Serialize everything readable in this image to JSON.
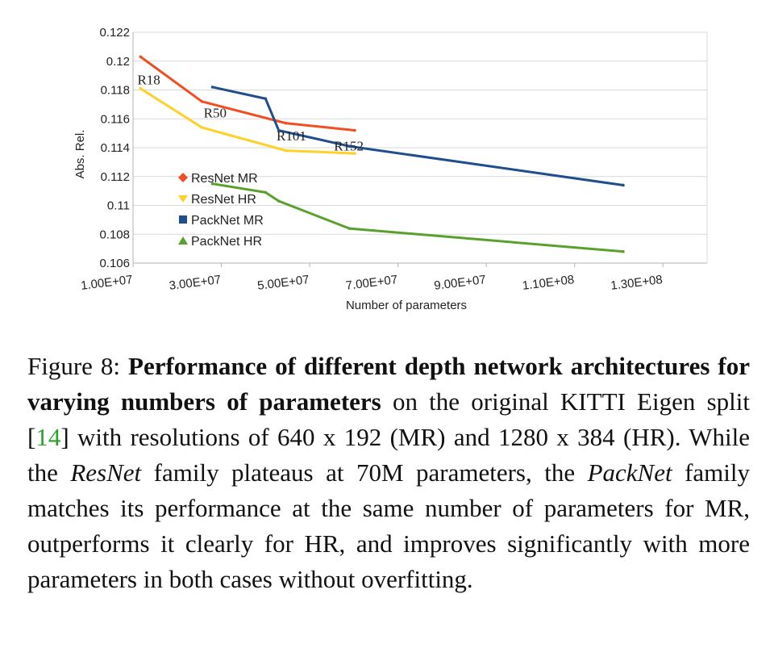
{
  "chart_data": {
    "type": "line",
    "xlabel": "Number of parameters",
    "ylabel": "Abs. Rel.",
    "xlim": [
      10000000,
      140000000
    ],
    "ylim": [
      0.106,
      0.122
    ],
    "x_ticks": [
      10000000,
      30000000,
      50000000,
      70000000,
      90000000,
      110000000,
      130000000
    ],
    "x_tick_labels": [
      "1.00E+07",
      "3.00E+07",
      "5.00E+07",
      "7.00E+07",
      "9.00E+07",
      "1.10E+08",
      "1.30E+08"
    ],
    "y_ticks": [
      0.106,
      0.108,
      0.11,
      0.112,
      0.114,
      0.116,
      0.118,
      0.12,
      0.122
    ],
    "y_tick_labels": [
      "0.106",
      "0.108",
      "0.11",
      "0.112",
      "0.114",
      "0.116",
      "0.118",
      "0.12",
      "0.122"
    ],
    "grid": "horizontal",
    "legend_position": "left",
    "series": [
      {
        "name": "ResNet MR",
        "color": "#f04e23",
        "marker": "diamond",
        "x": [
          11700000,
          25600000,
          44600000,
          60200000
        ],
        "y": [
          0.1203,
          0.1172,
          0.1157,
          0.1152
        ]
      },
      {
        "name": "ResNet HR",
        "color": "#ffd025",
        "marker": "triangle-down",
        "x": [
          11700000,
          25600000,
          44600000,
          60200000
        ],
        "y": [
          0.1181,
          0.1154,
          0.1138,
          0.1136
        ]
      },
      {
        "name": "PackNet MR",
        "color": "#1f4e8c",
        "marker": "square",
        "x": [
          28000000,
          40000000,
          43000000,
          59000000,
          121000000
        ],
        "y": [
          0.1182,
          0.1174,
          0.1152,
          0.1141,
          0.1114
        ]
      },
      {
        "name": "PackNet HR",
        "color": "#5aa02c",
        "marker": "triangle-up",
        "x": [
          28000000,
          40000000,
          43000000,
          59000000,
          121000000
        ],
        "y": [
          0.1115,
          0.1109,
          0.1103,
          0.1084,
          0.1068
        ]
      }
    ],
    "annotations": [
      {
        "text": "R18",
        "x": 11000000,
        "y": 0.1184
      },
      {
        "text": "R50",
        "x": 26000000,
        "y": 0.1161
      },
      {
        "text": "R101",
        "x": 42500000,
        "y": 0.1145
      },
      {
        "text": "R152",
        "x": 55500000,
        "y": 0.1138
      }
    ]
  },
  "caption": {
    "label": "Figure 8:",
    "bold": "Performance of different depth network architectures for varying numbers of parameters",
    "text1": " on the original KITTI Eigen split [",
    "ref": "14",
    "text2": "] with resolutions of 640 x 192 (MR) and 1280 x 384 (HR). While the ",
    "italic1": "ResNet",
    "text3": " family plateaus at 70M parameters, the ",
    "italic2": "PackNet",
    "text4": " family matches its performance at the same number of parameters for MR, outperforms it clearly for HR, and improves significantly with more parameters in both cases without overfitting."
  }
}
